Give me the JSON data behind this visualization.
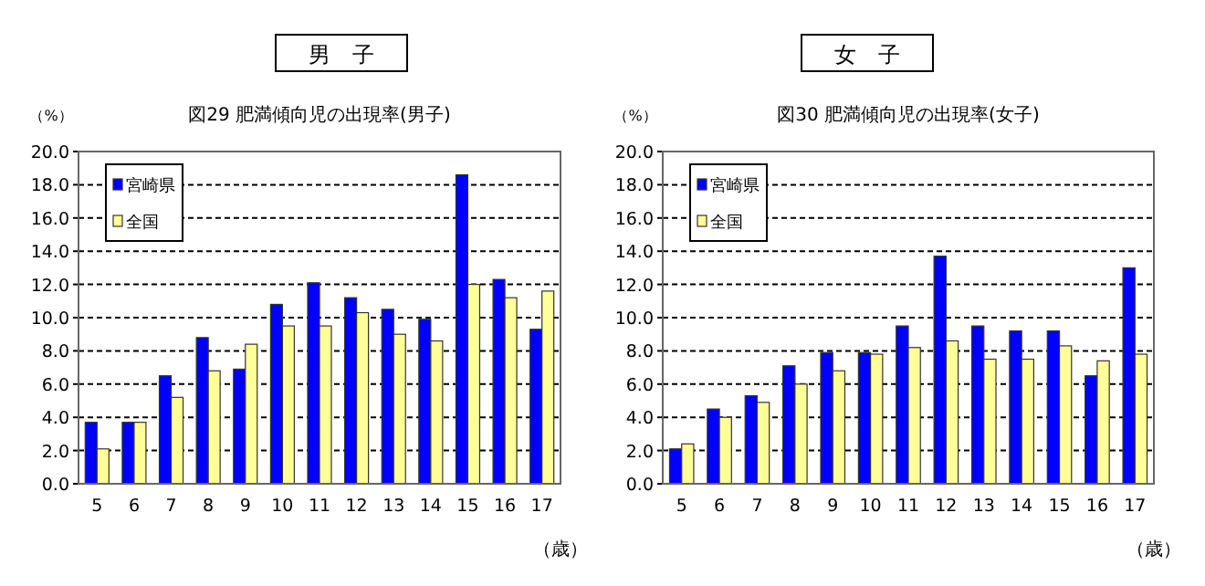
{
  "chart_data": [
    {
      "type": "bar",
      "title": "男　子",
      "subtitle": "図29  肥満傾向児の出現率(男子)",
      "ylabel": "（%）",
      "xlabel": "（歳）",
      "categories": [
        "5",
        "6",
        "7",
        "8",
        "9",
        "10",
        "11",
        "12",
        "13",
        "14",
        "15",
        "16",
        "17"
      ],
      "series": [
        {
          "name": "宮崎県",
          "color": "#0000ff",
          "values": [
            3.7,
            3.7,
            6.5,
            8.8,
            6.9,
            10.8,
            12.1,
            11.2,
            10.5,
            9.9,
            18.6,
            12.3,
            9.3
          ]
        },
        {
          "name": "全国",
          "color": "#ffff99",
          "values": [
            2.1,
            3.7,
            5.2,
            6.8,
            8.4,
            9.5,
            9.5,
            10.3,
            9.0,
            8.6,
            12.0,
            11.2,
            11.6
          ]
        }
      ],
      "ylim": [
        0,
        20
      ],
      "yticks": [
        {
          "value": 0,
          "label": "0.0"
        },
        {
          "value": 2,
          "label": "2.0"
        },
        {
          "value": 4,
          "label": "4.0"
        },
        {
          "value": 6,
          "label": "6.0"
        },
        {
          "value": 8,
          "label": "8.0"
        },
        {
          "value": 10,
          "label": "10.0"
        },
        {
          "value": 12,
          "label": "12.0"
        },
        {
          "value": 14,
          "label": "14.0"
        },
        {
          "value": 16,
          "label": "16.0"
        },
        {
          "value": 18,
          "label": "18.0"
        },
        {
          "value": 20,
          "label": "20.0"
        }
      ],
      "grid": "y",
      "legend": "top left"
    },
    {
      "type": "bar",
      "title": "女　子",
      "subtitle": "図30  肥満傾向児の出現率(女子)",
      "ylabel": "（%）",
      "xlabel": "（歳）",
      "categories": [
        "5",
        "6",
        "7",
        "8",
        "9",
        "10",
        "11",
        "12",
        "13",
        "14",
        "15",
        "16",
        "17"
      ],
      "series": [
        {
          "name": "宮崎県",
          "color": "#0000ff",
          "values": [
            2.1,
            4.5,
            5.3,
            7.1,
            7.9,
            7.9,
            9.5,
            13.7,
            9.5,
            9.2,
            9.2,
            6.5,
            13.0
          ]
        },
        {
          "name": "全国",
          "color": "#ffff99",
          "values": [
            2.4,
            4.0,
            4.9,
            6.0,
            6.8,
            7.8,
            8.2,
            8.6,
            7.5,
            7.5,
            8.3,
            7.4,
            7.8
          ]
        }
      ],
      "ylim": [
        0,
        20
      ],
      "yticks": [
        {
          "value": 0,
          "label": "0.0"
        },
        {
          "value": 2,
          "label": "2.0"
        },
        {
          "value": 4,
          "label": "4.0"
        },
        {
          "value": 6,
          "label": "6.0"
        },
        {
          "value": 8,
          "label": "8.0"
        },
        {
          "value": 10,
          "label": "10.0"
        },
        {
          "value": 12,
          "label": "12.0"
        },
        {
          "value": 14,
          "label": "14.0"
        },
        {
          "value": 16,
          "label": "16.0"
        },
        {
          "value": 18,
          "label": "18.0"
        },
        {
          "value": 20,
          "label": "20.0"
        }
      ],
      "grid": "y",
      "legend": "top left"
    }
  ]
}
